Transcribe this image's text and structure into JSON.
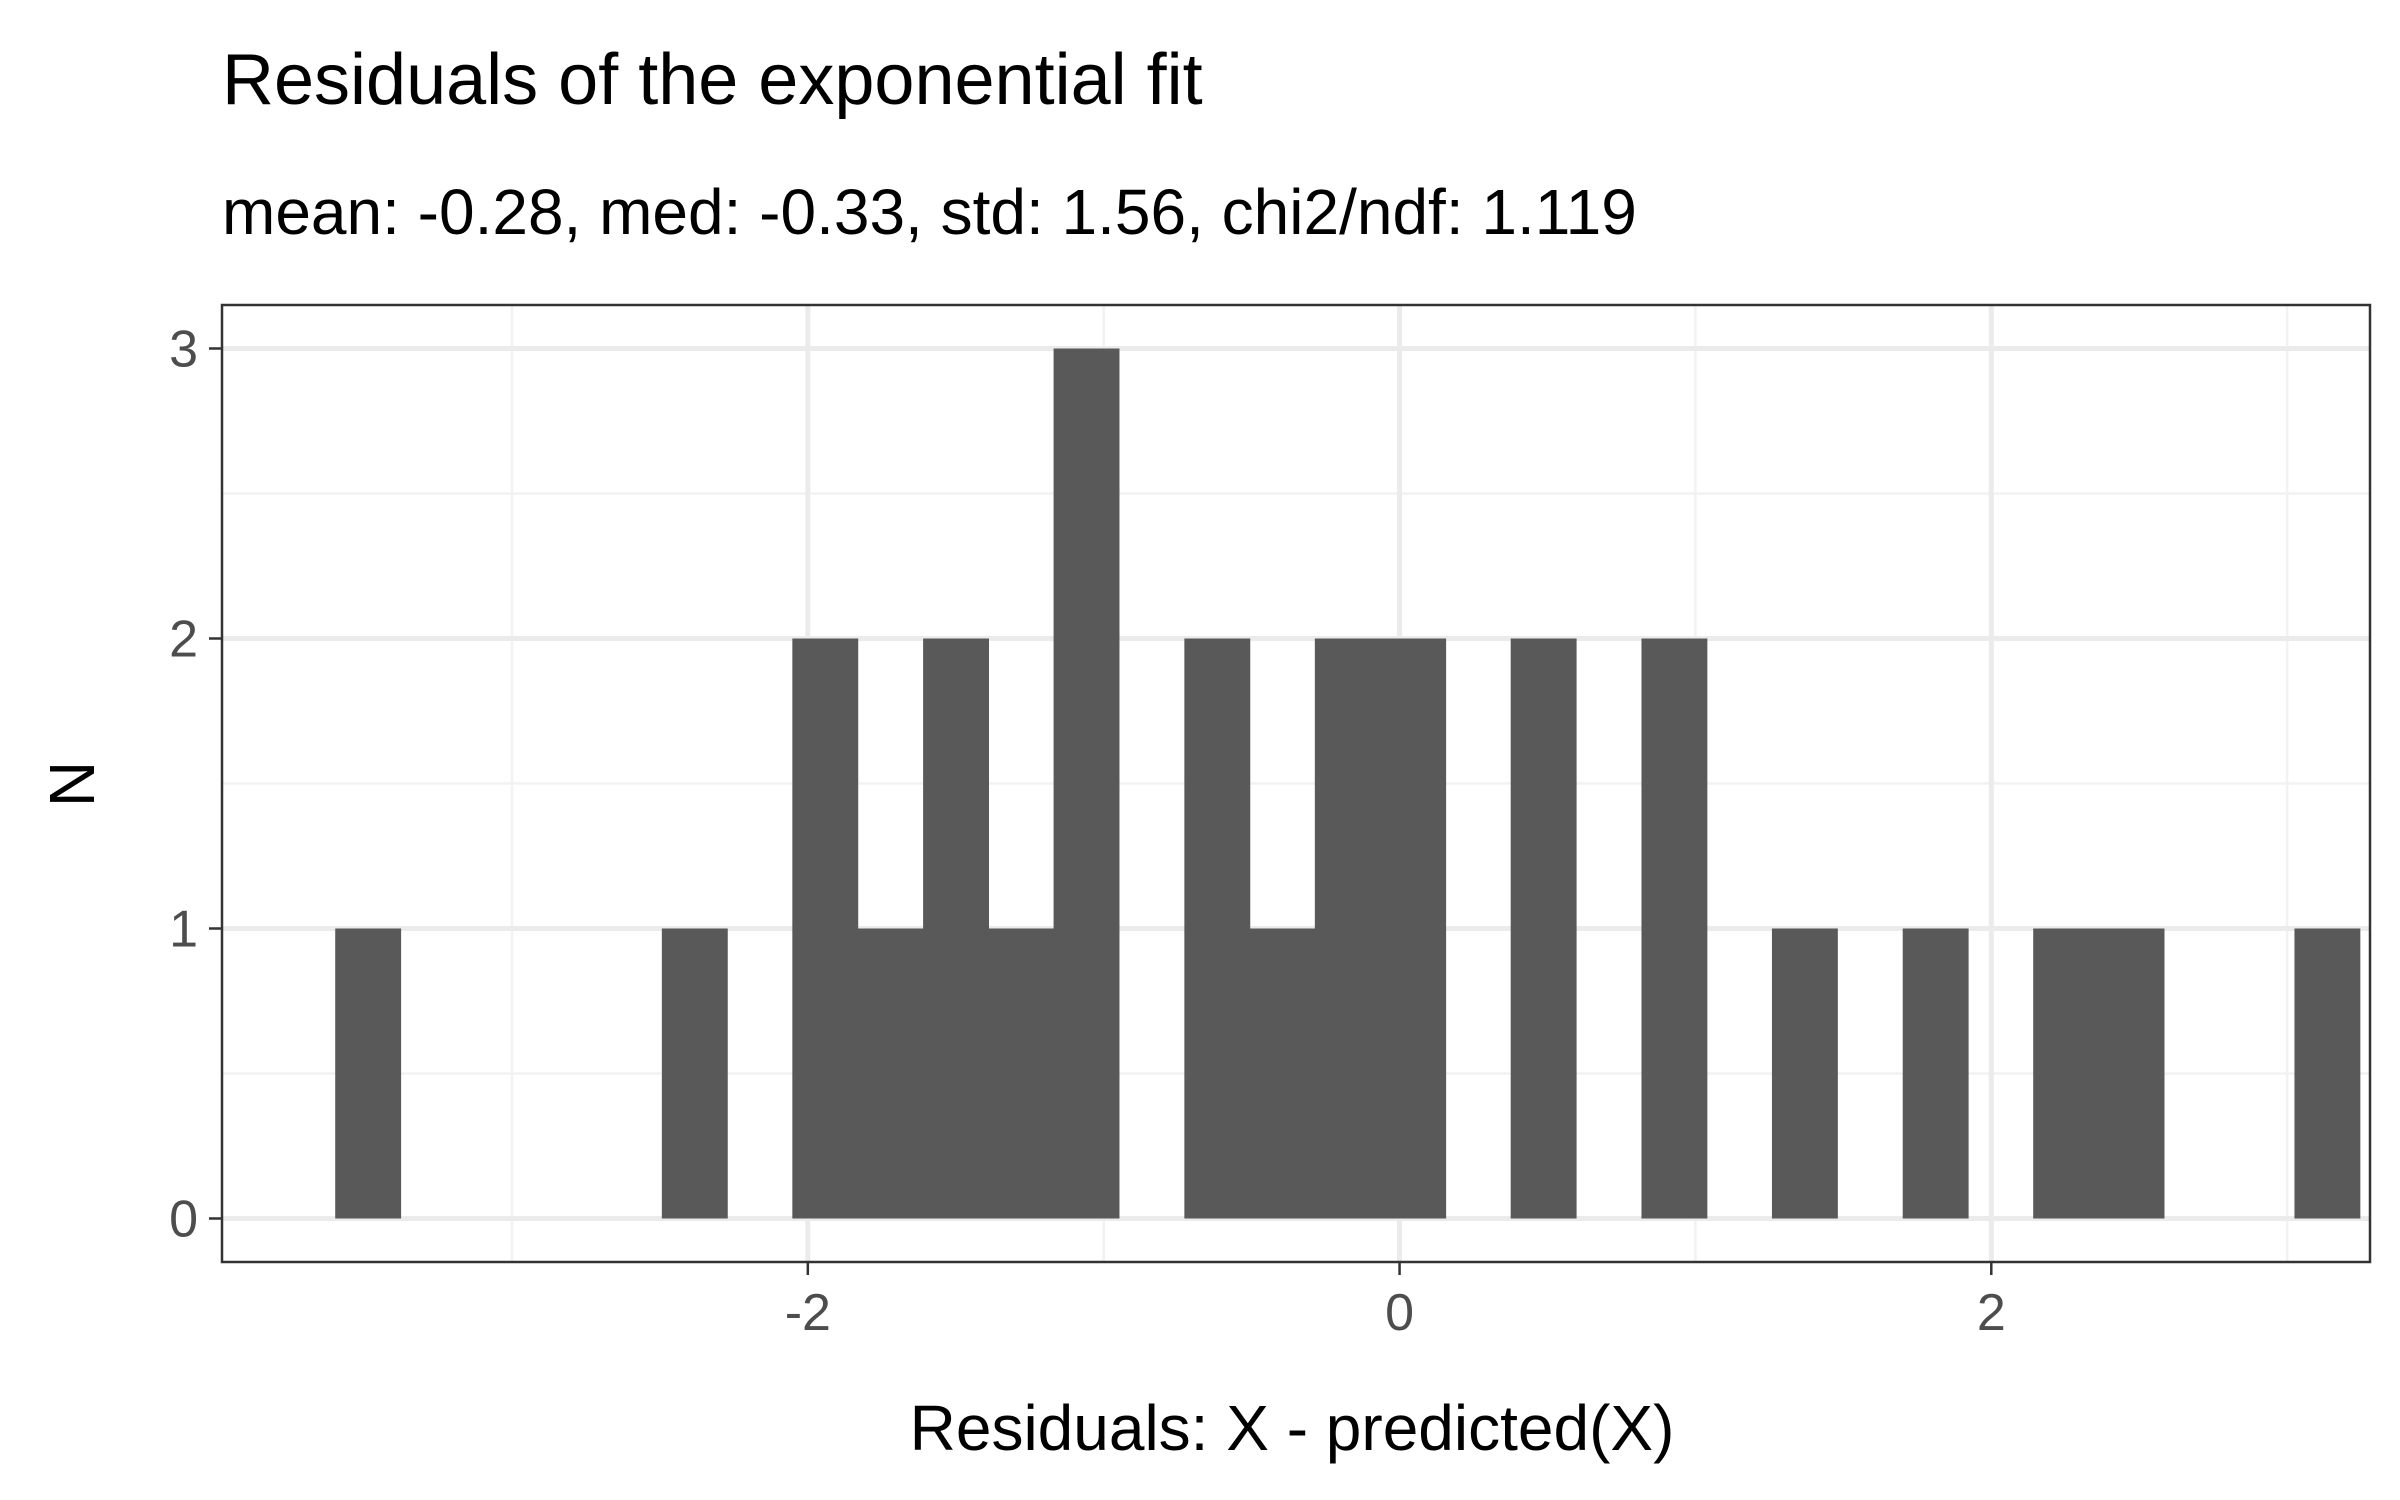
{
  "chart_data": {
    "type": "bar",
    "title": "Residuals of the exponential fit",
    "subtitle": "mean: -0.28, med: -0.33, std: 1.56, chi2/ndf: 1.119",
    "xlabel": "Residuals: X - predicted(X)",
    "ylabel": "N",
    "xlim": [
      -3.98,
      3.28
    ],
    "ylim": [
      -0.15,
      3.15
    ],
    "x_ticks": [
      -2,
      0,
      2
    ],
    "x_tick_labels": [
      "-2",
      "0",
      "2"
    ],
    "y_ticks": [
      0,
      1,
      2,
      3
    ],
    "y_tick_labels": [
      "0",
      "1",
      "2",
      "3"
    ],
    "grid": true,
    "bin_width": 0.2207,
    "bars": [
      {
        "x": -3.487,
        "value": 1
      },
      {
        "x": -2.383,
        "value": 1
      },
      {
        "x": -1.942,
        "value": 2
      },
      {
        "x": -1.721,
        "value": 1
      },
      {
        "x": -1.5,
        "value": 2
      },
      {
        "x": -1.28,
        "value": 1
      },
      {
        "x": -1.059,
        "value": 3
      },
      {
        "x": -0.617,
        "value": 2
      },
      {
        "x": -0.397,
        "value": 1
      },
      {
        "x": -0.176,
        "value": 2
      },
      {
        "x": 0.045,
        "value": 2
      },
      {
        "x": 0.486,
        "value": 2
      },
      {
        "x": 0.928,
        "value": 2
      },
      {
        "x": 1.369,
        "value": 1
      },
      {
        "x": 1.811,
        "value": 1
      },
      {
        "x": 2.252,
        "value": 1
      },
      {
        "x": 2.473,
        "value": 1
      },
      {
        "x": 3.135,
        "value": 1
      }
    ],
    "colors": {
      "bar": "#595959",
      "panel_border": "#333333",
      "grid_major": "#ebebeb",
      "grid_minor": "#f2f2f2",
      "tick_label": "#4d4d4d"
    }
  }
}
